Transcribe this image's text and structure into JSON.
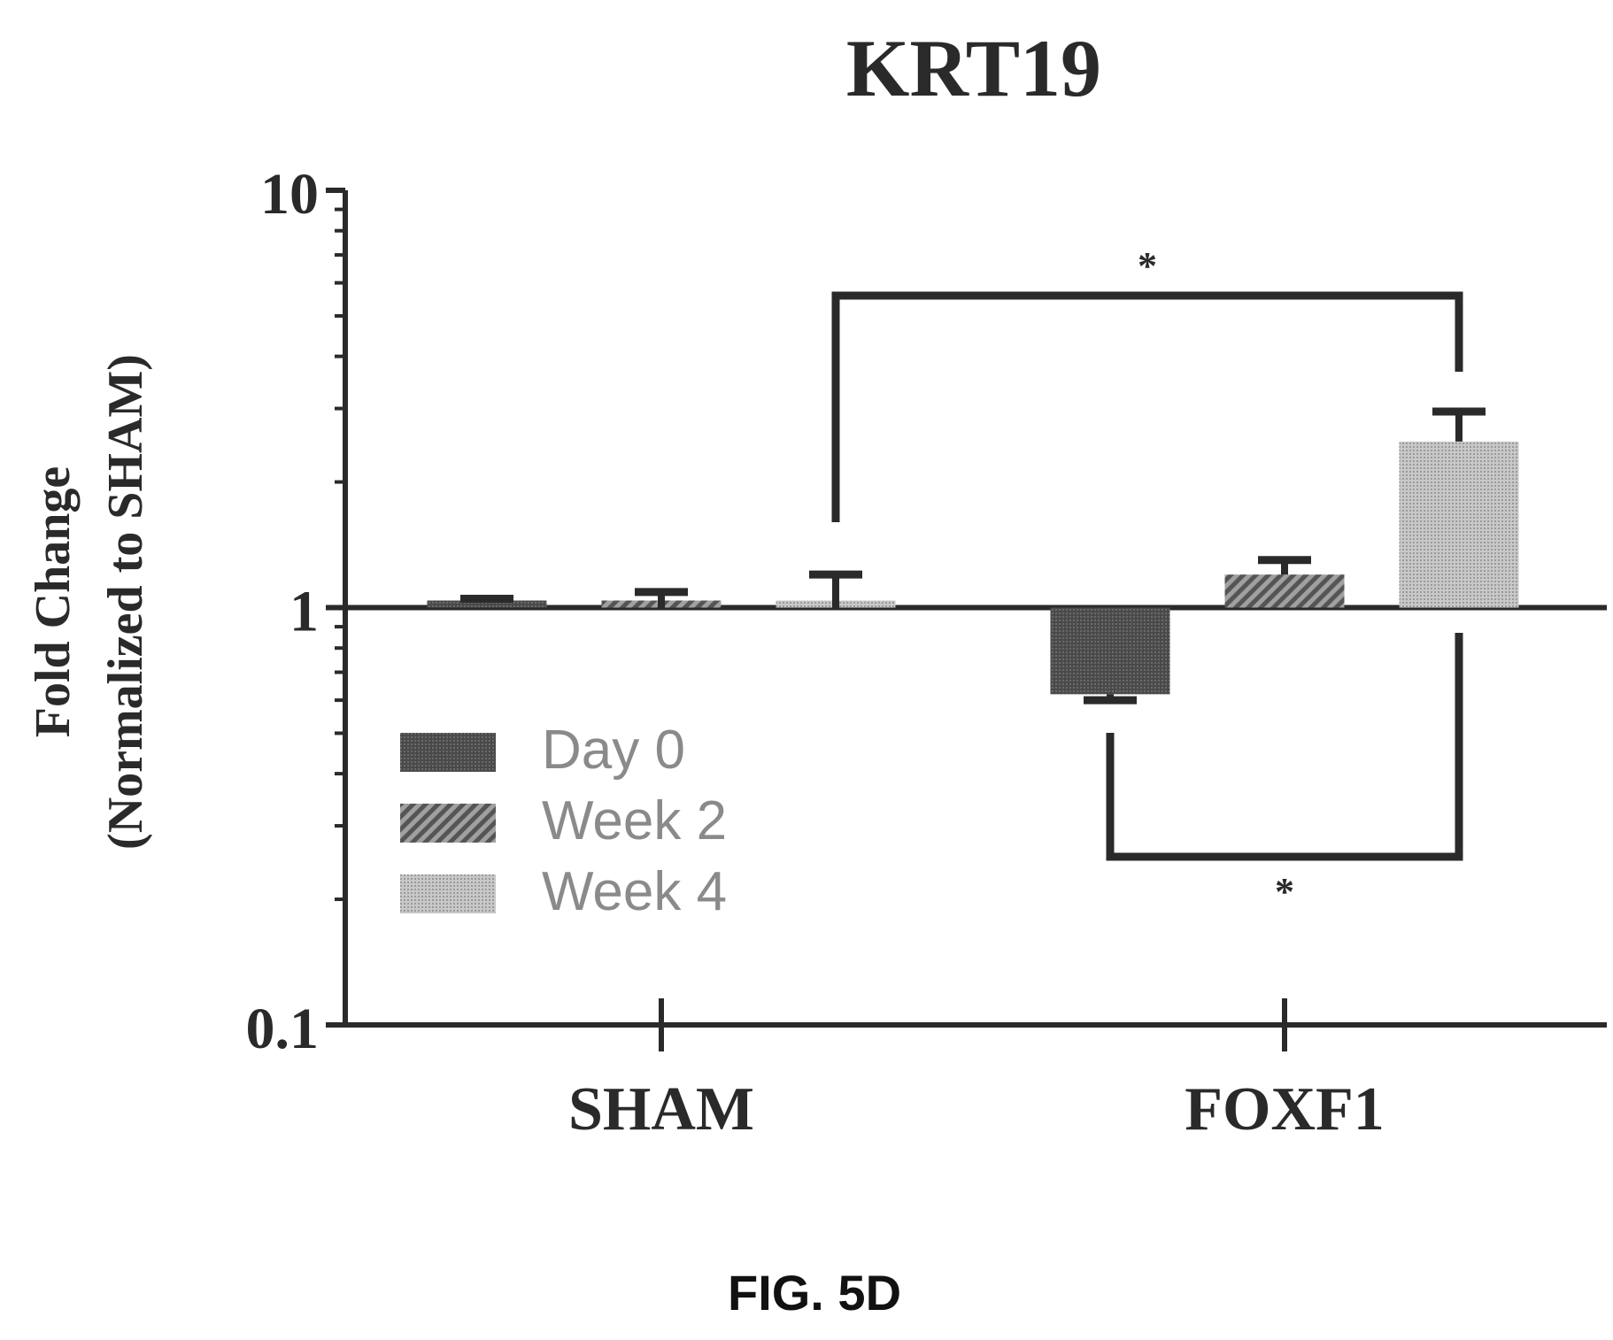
{
  "chart_data": {
    "type": "bar",
    "title": "KRT19",
    "ylabel_lines": [
      "Fold Change",
      "(Normalized to SHAM)"
    ],
    "xlabel": "",
    "y_scale": "log",
    "ylim": [
      0.1,
      10
    ],
    "y_ticks": [
      "0.1",
      "1",
      "10"
    ],
    "baseline": 1,
    "categories": [
      "SHAM",
      "FOXF1"
    ],
    "series": [
      {
        "name": "Day 0",
        "values": [
          1.03,
          0.62
        ],
        "errors": [
          0.02,
          0.02
        ],
        "pattern": "dense"
      },
      {
        "name": "Week 2",
        "values": [
          1.0,
          1.2
        ],
        "errors": [
          0.09,
          0.1
        ],
        "pattern": "hatched"
      },
      {
        "name": "Week 4",
        "values": [
          1.0,
          2.5
        ],
        "errors": [
          0.2,
          0.45
        ],
        "pattern": "light"
      }
    ],
    "legend_position": "lower-left",
    "significance": [
      {
        "label": "*",
        "between": [
          "SHAM Week 4",
          "FOXF1 Week 4"
        ],
        "side": "above"
      },
      {
        "label": "*",
        "between": [
          "FOXF1 Day 0",
          "FOXF1 Week 4"
        ],
        "side": "below"
      }
    ]
  },
  "figure_caption": "FIG. 5D",
  "colors": {
    "ink": "#2a2a2a",
    "day0": "#505050",
    "week2": "#7a7a7a",
    "week4": "#c4c4c4"
  }
}
